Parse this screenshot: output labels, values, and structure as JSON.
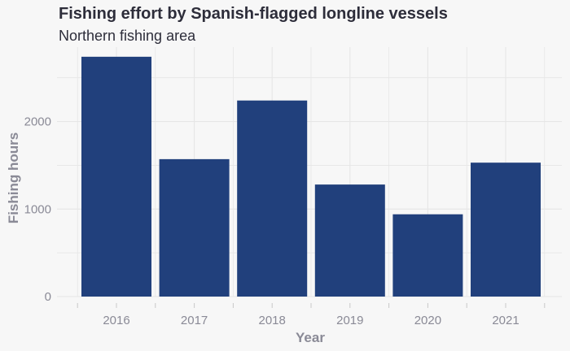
{
  "chart_data": {
    "type": "bar",
    "title": "Fishing effort by Spanish-flagged longline vessels",
    "subtitle": "Northern fishing area",
    "xlabel": "Year",
    "ylabel": "Fishing hours",
    "categories": [
      "2016",
      "2017",
      "2018",
      "2019",
      "2020",
      "2021"
    ],
    "values": [
      2740,
      1570,
      2240,
      1280,
      940,
      1530
    ],
    "ylim": [
      0,
      2850
    ],
    "yticks": [
      0,
      1000,
      2000
    ],
    "grid": true,
    "legend": "none",
    "bar_color": "#21407c",
    "background": "#f7f7f7",
    "grid_color": "#e6e6e6",
    "text_color": "#2d2d3a",
    "axis_color": "#8a8a96"
  }
}
